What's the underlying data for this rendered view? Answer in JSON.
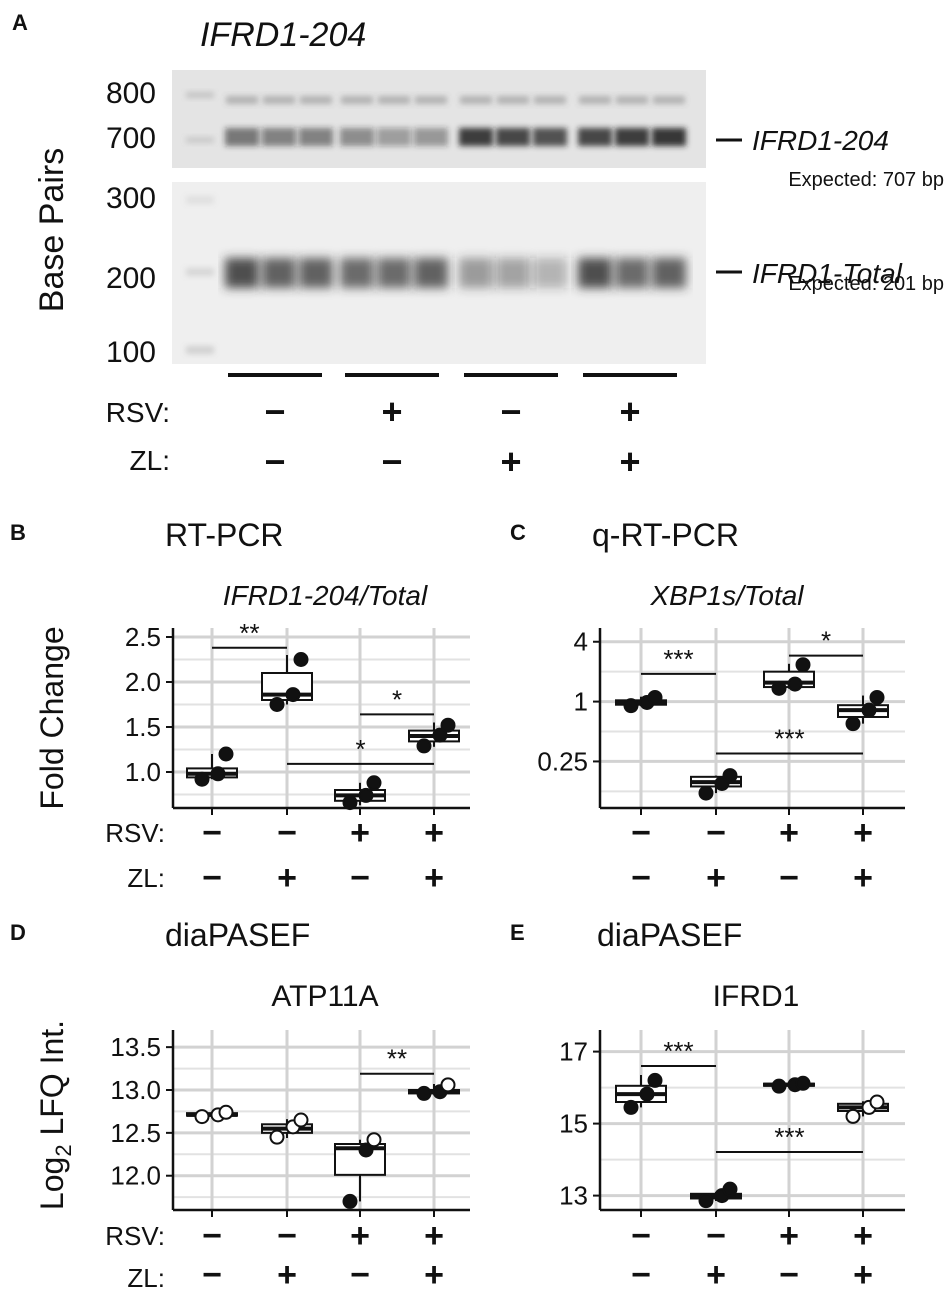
{
  "panel_a": {
    "letter": "A",
    "gel_title": "IFRD1-204",
    "ylabel": "Base Pairs",
    "ladder_top": [
      "800",
      "700"
    ],
    "ladder_bottom": [
      "300",
      "200",
      "100"
    ],
    "band_top_label": "IFRD1-204",
    "band_top_expected": "Expected: 707 bp",
    "band_bottom_label": "IFRD1-Total",
    "band_bottom_expected": "Expected: 201 bp",
    "rsv_label": "RSV:",
    "zl_label": "ZL:",
    "rsv": [
      "−",
      "+",
      "−",
      "+"
    ],
    "zl": [
      "−",
      "−",
      "+",
      "+"
    ]
  },
  "chart_data": [
    {
      "panel": "B",
      "type": "box",
      "method": "RT-PCR",
      "title": "IFRD1-204/Total",
      "ylabel": "Fold Change",
      "yscale": "linear",
      "ylim": [
        0.6,
        2.6
      ],
      "yticks": [
        "1.0",
        "1.5",
        "2.0",
        "2.5"
      ],
      "ytick_values": [
        1.0,
        1.5,
        2.0,
        2.5
      ],
      "rsv": [
        "−",
        "−",
        "+",
        "+"
      ],
      "zl": [
        "−",
        "+",
        "−",
        "+"
      ],
      "groups": [
        {
          "box": [
            0.94,
            0.98,
            1.04
          ],
          "whisker": [
            0.92,
            1.2
          ],
          "points": [
            0.92,
            0.98,
            1.2
          ],
          "filled": true
        },
        {
          "box": [
            1.8,
            1.86,
            2.1
          ],
          "whisker": [
            1.75,
            2.3
          ],
          "points": [
            1.75,
            1.86,
            2.25
          ],
          "filled": true
        },
        {
          "box": [
            0.68,
            0.74,
            0.8
          ],
          "whisker": [
            0.63,
            0.88
          ],
          "points": [
            0.66,
            0.74,
            0.88
          ],
          "filled": true
        },
        {
          "box": [
            1.34,
            1.4,
            1.46
          ],
          "whisker": [
            1.28,
            1.55
          ],
          "points": [
            1.29,
            1.41,
            1.52
          ],
          "filled": true
        }
      ],
      "significance": [
        {
          "from": 0,
          "to": 1,
          "y": 2.38,
          "label": "**"
        },
        {
          "from": 2,
          "to": 3,
          "y": 1.64,
          "label": "*"
        },
        {
          "from": 1,
          "to": 3,
          "y": 1.09,
          "label": "*"
        }
      ]
    },
    {
      "panel": "C",
      "type": "box",
      "method": "q-RT-PCR",
      "title": "XBP1s/Total",
      "ylabel": "",
      "yscale": "log2",
      "ylim": [
        0.085,
        5.5
      ],
      "yticks": [
        "0.25",
        "1",
        "4"
      ],
      "ytick_values": [
        0.25,
        1,
        4
      ],
      "rsv": [
        "−",
        "−",
        "+",
        "+"
      ],
      "zl": [
        "−",
        "+",
        "−",
        "+"
      ],
      "groups": [
        {
          "box": [
            0.93,
            0.97,
            1.03
          ],
          "whisker": [
            0.9,
            1.12
          ],
          "points": [
            0.91,
            0.98,
            1.1
          ],
          "filled": true
        },
        {
          "box": [
            0.14,
            0.155,
            0.175
          ],
          "whisker": [
            0.12,
            0.18
          ],
          "points": [
            0.12,
            0.15,
            0.18
          ],
          "filled": true
        },
        {
          "box": [
            1.4,
            1.55,
            2.0
          ],
          "whisker": [
            1.35,
            2.4
          ],
          "points": [
            1.36,
            1.5,
            2.35
          ],
          "filled": true
        },
        {
          "box": [
            0.7,
            0.82,
            0.92
          ],
          "whisker": [
            0.6,
            1.15
          ],
          "points": [
            0.6,
            0.82,
            1.1
          ],
          "filled": true
        }
      ],
      "significance": [
        {
          "from": 0,
          "to": 1,
          "y": 1.9,
          "label": "***"
        },
        {
          "from": 2,
          "to": 3,
          "y": 2.9,
          "label": "*"
        },
        {
          "from": 1,
          "to": 3,
          "y": 0.3,
          "label": "***"
        }
      ]
    },
    {
      "panel": "D",
      "type": "box",
      "method": "diaPASEF",
      "title": "ATP11A",
      "ylabel": "Log2 LFQ Int.",
      "yscale": "linear",
      "ylim": [
        11.6,
        13.7
      ],
      "yticks": [
        "12.0",
        "12.5",
        "13.0",
        "13.5"
      ],
      "ytick_values": [
        12.0,
        12.5,
        13.0,
        13.5
      ],
      "rsv": [
        "−",
        "−",
        "+",
        "+"
      ],
      "zl": [
        "−",
        "+",
        "−",
        "+"
      ],
      "groups": [
        {
          "box": [
            12.7,
            12.71,
            12.73
          ],
          "whisker": [
            12.69,
            12.74
          ],
          "points": [
            12.69,
            12.71,
            12.74
          ],
          "filled": false
        },
        {
          "box": [
            12.5,
            12.55,
            12.6
          ],
          "whisker": [
            12.44,
            12.66
          ],
          "points": [
            12.45,
            12.57,
            12.65
          ],
          "filled": false
        },
        {
          "box": [
            12.01,
            12.32,
            12.37
          ],
          "whisker": [
            11.7,
            12.42
          ],
          "points": [
            11.7,
            12.3,
            12.42
          ],
          "filled": "mixed"
        },
        {
          "box": [
            12.96,
            12.98,
            13.0
          ],
          "whisker": [
            12.95,
            13.07
          ],
          "points": [
            12.96,
            12.98,
            13.06
          ],
          "filled": "mixed"
        }
      ],
      "significance": [
        {
          "from": 2,
          "to": 3,
          "y": 13.19,
          "label": "**"
        }
      ]
    },
    {
      "panel": "E",
      "type": "box",
      "method": "diaPASEF",
      "title": "IFRD1",
      "ylabel": "",
      "yscale": "linear",
      "ylim": [
        12.6,
        17.6
      ],
      "yticks": [
        "13",
        "15",
        "17"
      ],
      "ytick_values": [
        13,
        15,
        17
      ],
      "rsv": [
        "−",
        "−",
        "+",
        "+"
      ],
      "zl": [
        "−",
        "+",
        "−",
        "+"
      ],
      "groups": [
        {
          "box": [
            15.6,
            15.82,
            16.05
          ],
          "whisker": [
            15.45,
            16.35
          ],
          "points": [
            15.45,
            15.82,
            16.2
          ],
          "filled": true
        },
        {
          "box": [
            12.92,
            12.99,
            13.05
          ],
          "whisker": [
            12.85,
            13.1
          ],
          "points": [
            12.86,
            13.0,
            13.18
          ],
          "filled": true
        },
        {
          "box": [
            16.05,
            16.08,
            16.11
          ],
          "whisker": [
            16.04,
            16.13
          ],
          "points": [
            16.04,
            16.08,
            16.12
          ],
          "filled": true
        },
        {
          "box": [
            15.35,
            15.45,
            15.55
          ],
          "whisker": [
            15.2,
            15.62
          ],
          "points": [
            15.2,
            15.45,
            15.6
          ],
          "filled": false
        }
      ],
      "significance": [
        {
          "from": 0,
          "to": 1,
          "y": 16.6,
          "label": "***"
        },
        {
          "from": 1,
          "to": 3,
          "y": 14.21,
          "label": "***"
        }
      ]
    }
  ]
}
